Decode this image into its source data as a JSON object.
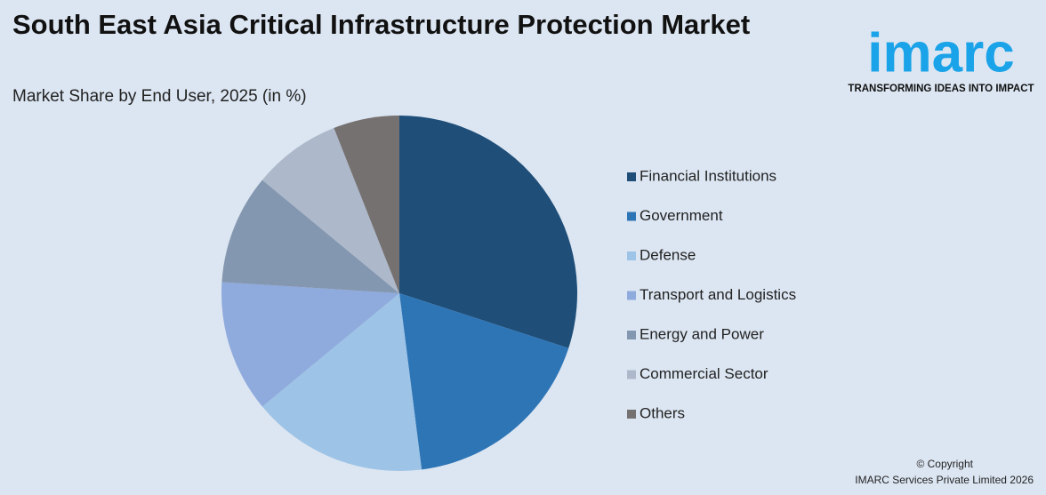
{
  "chart_data": {
    "type": "pie",
    "title": "South East Asia Critical Infrastructure Protection Market",
    "subtitle": "Market Share by End User, 2025 (in %)",
    "categories": [
      "Financial Institutions",
      "Government",
      "Defense",
      "Transport and Logistics",
      "Energy and Power",
      "Commercial Sector",
      "Others"
    ],
    "values": [
      30,
      18,
      16,
      12,
      10,
      8,
      6
    ],
    "colors": [
      "#1f4e79",
      "#2e75b6",
      "#9dc3e6",
      "#8faadc",
      "#8497b0",
      "#adb9ca",
      "#767171"
    ],
    "legend": "right"
  },
  "logo": {
    "name": "imarc",
    "tagline": "TRANSFORMING IDEAS INTO IMPACT"
  },
  "footer": {
    "copyright": "© Copyright",
    "owner": "IMARC Services Private Limited 2026"
  }
}
